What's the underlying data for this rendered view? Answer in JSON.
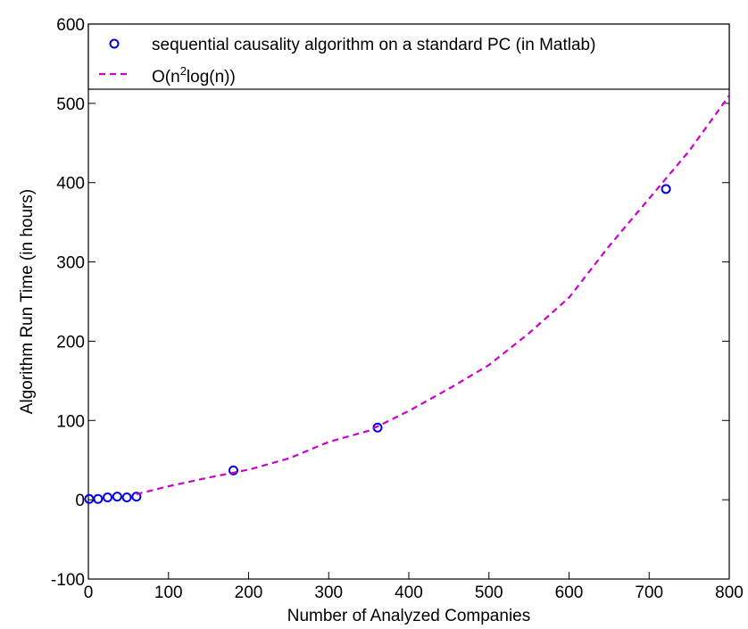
{
  "chart_data": {
    "type": "scatter",
    "xlabel": "Number of Analyzed Companies",
    "ylabel": "Algorithm Run Time (in hours)",
    "xlim": [
      0,
      800
    ],
    "ylim": [
      -100,
      600
    ],
    "xticks": [
      0,
      100,
      200,
      300,
      400,
      500,
      600,
      700,
      800
    ],
    "yticks": [
      -100,
      0,
      100,
      200,
      300,
      400,
      500,
      600
    ],
    "grid": false,
    "legend_position": "top",
    "series": [
      {
        "name": "sequential causality algorithm on a standard PC (in Matlab)",
        "kind": "markers",
        "marker": "circle",
        "color": "#0000ee",
        "x": [
          1,
          12,
          24,
          36,
          48,
          60,
          181,
          361,
          721
        ],
        "y": [
          1,
          1,
          3,
          4,
          3,
          4,
          37,
          91,
          392
        ]
      },
      {
        "name": "O(n²log(n))",
        "name_parts": {
          "prefix": "O(n",
          "sup": "2",
          "suffix": "log(n))"
        },
        "kind": "line",
        "style": "dashed",
        "color": "#cc00cc",
        "x": [
          60,
          100,
          150,
          200,
          250,
          300,
          350,
          400,
          450,
          500,
          550,
          600,
          650,
          700,
          750,
          800
        ],
        "y": [
          7,
          17,
          28,
          38,
          52,
          73,
          87,
          112,
          140,
          170,
          210,
          255,
          320,
          380,
          440,
          510
        ]
      }
    ]
  }
}
